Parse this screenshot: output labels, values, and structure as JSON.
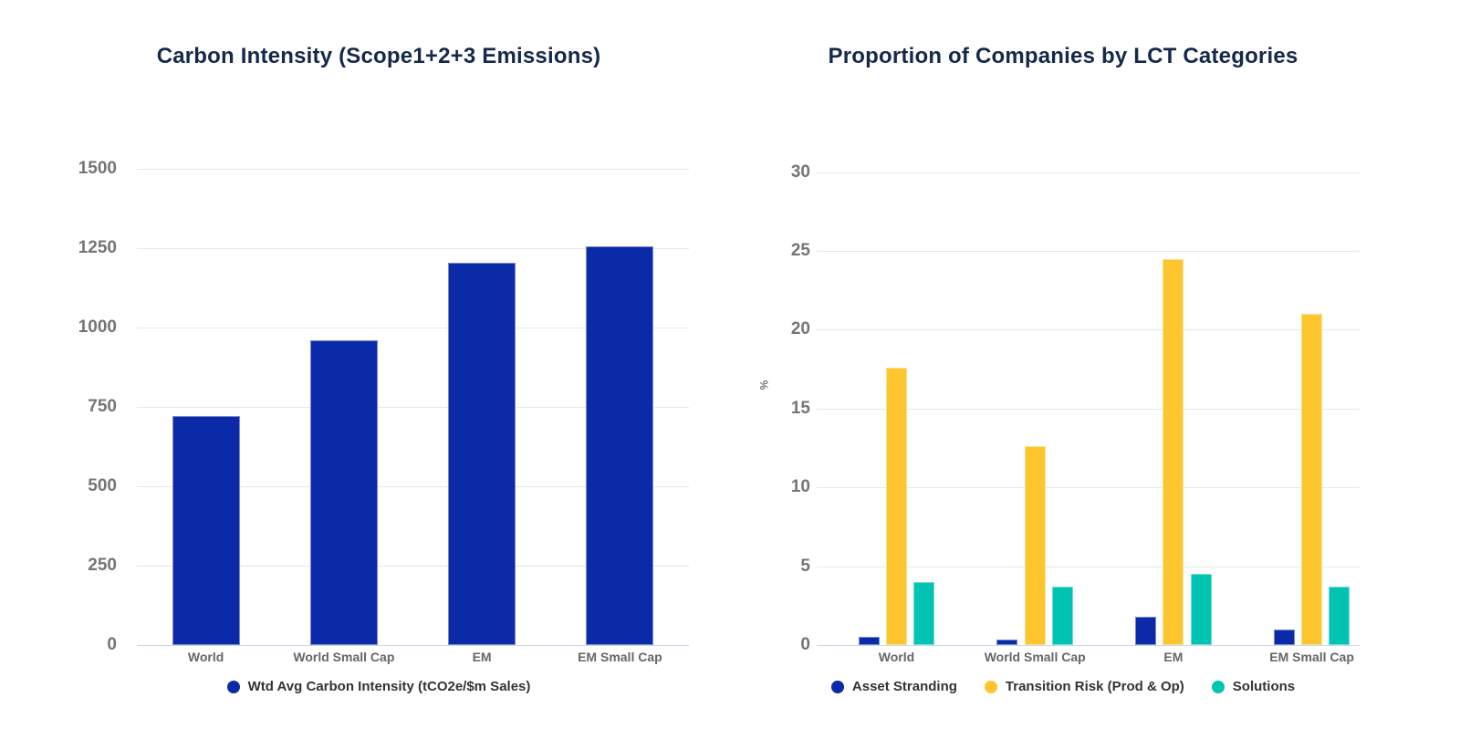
{
  "styles": {
    "background": "#ffffff",
    "title_color": "#14294b",
    "tick_color": "#757575",
    "category_color": "#666666",
    "legend_text_color": "#333333",
    "gridline_color": "#e7e7e7",
    "axis_line_color": "#ccd6eb",
    "navy": "#0a2aa8",
    "yellow": "#fec62e",
    "teal": "#00c3b1"
  },
  "chart_data": [
    {
      "type": "bar",
      "title": "Carbon Intensity (Scope1+2+3 Emissions)",
      "categories": [
        "World",
        "World Small Cap",
        "EM",
        "EM Small Cap"
      ],
      "series": [
        {
          "name": "Wtd Avg Carbon Intensity (tCO2e/$m Sales)",
          "color": "#0a2aa8",
          "values": [
            720,
            960,
            1205,
            1255
          ]
        }
      ],
      "xlabel": "",
      "ylabel": "",
      "ylim": [
        0,
        1500
      ],
      "yticks": [
        0,
        250,
        500,
        750,
        1000,
        1250,
        1500
      ],
      "grid": true,
      "legend_position": "bottom"
    },
    {
      "type": "bar",
      "title": "Proportion of Companies by LCT Categories",
      "categories": [
        "World",
        "World Small Cap",
        "EM",
        "EM Small Cap"
      ],
      "series": [
        {
          "name": "Asset Stranding",
          "color": "#0a2aa8",
          "values": [
            0.55,
            0.35,
            1.8,
            1.0
          ]
        },
        {
          "name": "Transition Risk (Prod & Op)",
          "color": "#fec62e",
          "values": [
            17.6,
            12.6,
            24.5,
            21.0
          ]
        },
        {
          "name": "Solutions",
          "color": "#00c3b1",
          "values": [
            4.0,
            3.7,
            4.5,
            3.7
          ]
        }
      ],
      "xlabel": "",
      "ylabel": "%",
      "ylim": [
        0,
        30
      ],
      "yticks": [
        0,
        5,
        10,
        15,
        20,
        25,
        30
      ],
      "grid": true,
      "legend_position": "bottom"
    }
  ]
}
